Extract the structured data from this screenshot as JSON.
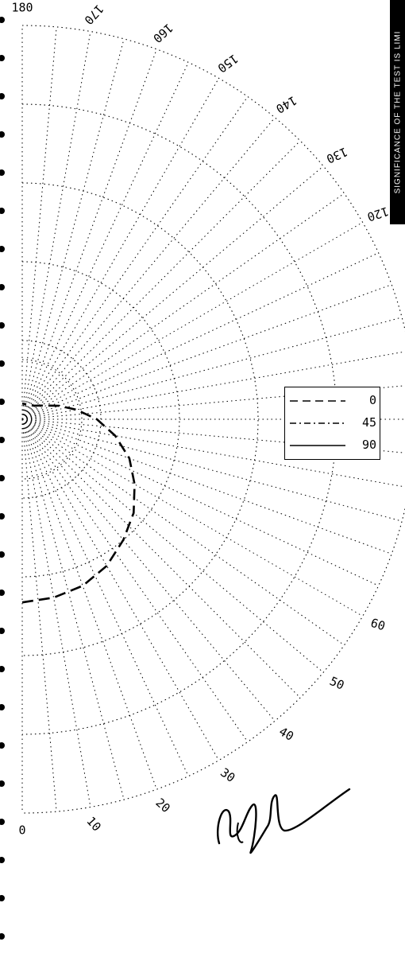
{
  "chart_data": {
    "type": "polar",
    "title": "",
    "angular_ticks": [
      "0",
      "10",
      "20",
      "30",
      "40",
      "50",
      "60",
      "120",
      "130",
      "140",
      "150",
      "160",
      "170",
      "180"
    ],
    "radial_rings": 5,
    "legend": {
      "placement": "right",
      "entries": [
        {
          "label": "0",
          "style": "dashed"
        },
        {
          "label": "45",
          "style": "dash-dot"
        },
        {
          "label": "90",
          "style": "solid"
        }
      ]
    },
    "series": [
      {
        "name": "0",
        "style": "dashed",
        "points": [
          {
            "angle": 0,
            "r": 0.465
          },
          {
            "angle": 10,
            "r": 0.46
          },
          {
            "angle": 20,
            "r": 0.45
          },
          {
            "angle": 30,
            "r": 0.43
          },
          {
            "angle": 40,
            "r": 0.4
          },
          {
            "angle": 50,
            "r": 0.37
          },
          {
            "angle": 60,
            "r": 0.33
          },
          {
            "angle": 70,
            "r": 0.29
          },
          {
            "angle": 80,
            "r": 0.24
          },
          {
            "angle": 90,
            "r": 0.19
          },
          {
            "angle": 100,
            "r": 0.14
          },
          {
            "angle": 110,
            "r": 0.1
          },
          {
            "angle": 120,
            "r": 0.07
          },
          {
            "angle": 140,
            "r": 0.045
          },
          {
            "angle": 160,
            "r": 0.04
          },
          {
            "angle": 180,
            "r": 0.04
          }
        ]
      }
    ]
  },
  "side_banner": "SIGNIFICANCE OF THE TEST IS LIMI",
  "signature_caption": "",
  "colors": {
    "ink": "#000000",
    "banner_bg": "#000000",
    "banner_text": "#ffffff"
  }
}
